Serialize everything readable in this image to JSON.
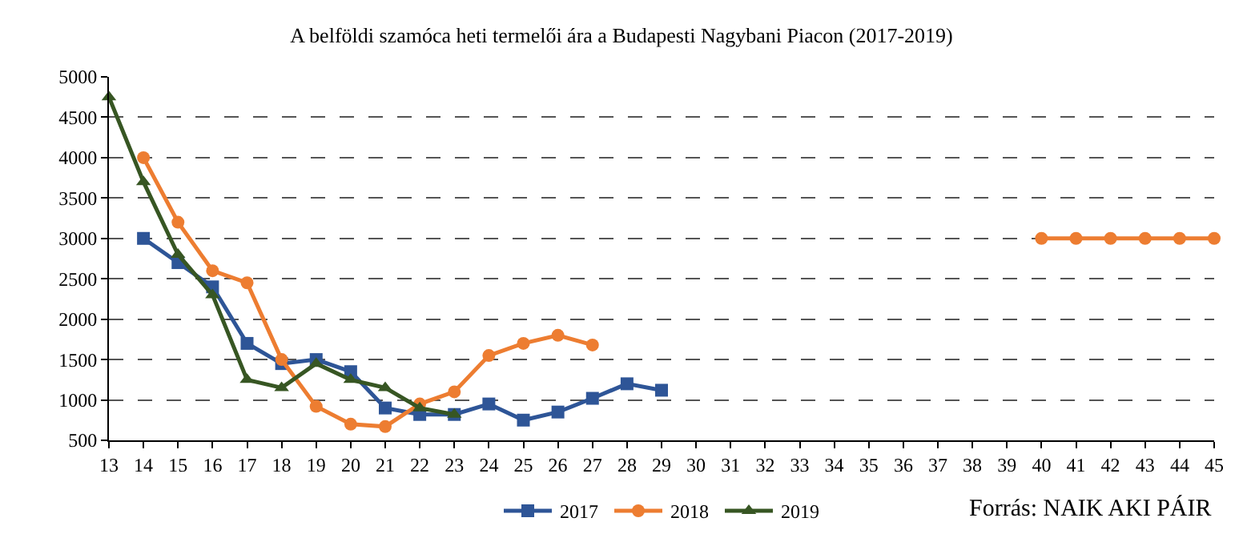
{
  "chart_data": {
    "type": "line",
    "title": "A belföldi szamóca heti termelői ára a Budapesti Nagybani Piacon (2017-2019)",
    "categories": [
      "13",
      "14",
      "15",
      "16",
      "17",
      "18",
      "19",
      "20",
      "21",
      "22",
      "23",
      "24",
      "25",
      "26",
      "27",
      "28",
      "29",
      "30",
      "31",
      "32",
      "33",
      "34",
      "35",
      "36",
      "37",
      "38",
      "39",
      "40",
      "41",
      "42",
      "43",
      "44",
      "45"
    ],
    "series": [
      {
        "name": "2017",
        "color": "#2e5597",
        "marker": "square",
        "values": [
          null,
          3000,
          2700,
          2400,
          1700,
          1450,
          1500,
          1350,
          900,
          820,
          820,
          950,
          750,
          850,
          1020,
          1200,
          1120,
          null,
          null,
          null,
          null,
          null,
          null,
          null,
          null,
          null,
          null,
          null,
          null,
          null,
          null,
          null,
          null
        ]
      },
      {
        "name": "2018",
        "color": "#ed7d31",
        "marker": "circle",
        "values": [
          null,
          4000,
          3200,
          2600,
          2450,
          1500,
          920,
          700,
          670,
          950,
          1100,
          1550,
          1700,
          1800,
          1680,
          null,
          null,
          null,
          null,
          null,
          null,
          null,
          null,
          null,
          null,
          null,
          null,
          3000,
          3000,
          3000,
          3000,
          3000,
          3000
        ]
      },
      {
        "name": "2019",
        "color": "#375623",
        "marker": "triangle",
        "values": [
          4750,
          3700,
          2800,
          2300,
          1250,
          1150,
          1450,
          1250,
          1150,
          900,
          820,
          null,
          null,
          null,
          null,
          null,
          null,
          null,
          null,
          null,
          null,
          null,
          null,
          null,
          null,
          null,
          null,
          null,
          null,
          null,
          null,
          null,
          null
        ]
      }
    ],
    "ylim": [
      500,
      5000
    ],
    "yticks": [
      500,
      1000,
      1500,
      2000,
      2500,
      3000,
      3500,
      4000,
      4500,
      5000
    ],
    "grid": "y",
    "legend": "bottom",
    "line_style": "solid",
    "annotations": [
      "Forrás: NAIK AKI PÁIR"
    ]
  }
}
